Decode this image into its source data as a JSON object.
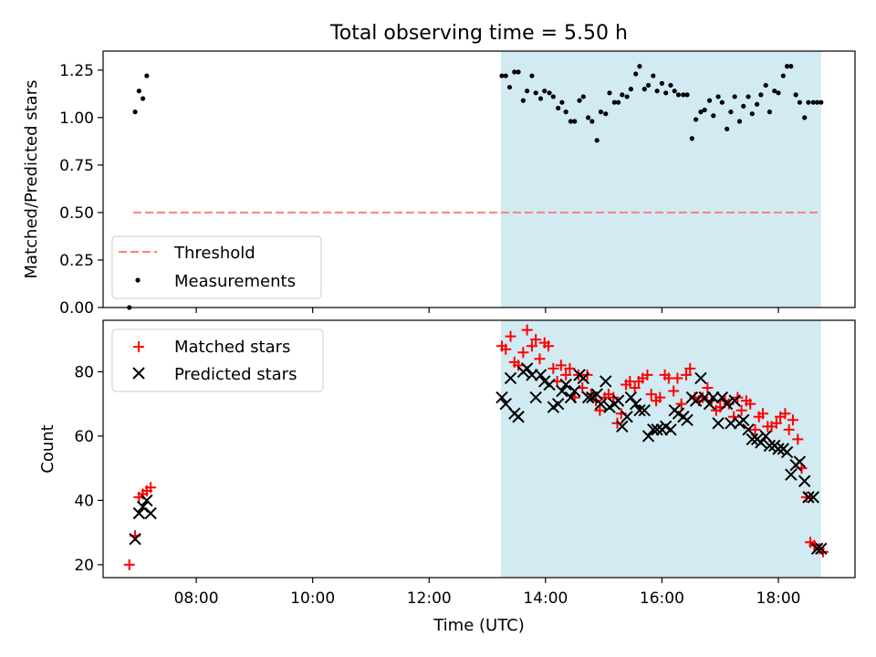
{
  "chart_data": [
    {
      "type": "scatter",
      "title": "Total observing time = 5.50 h",
      "xlabel": "",
      "ylabel": "Matched/Predicted stars",
      "xlim": [
        "06:24",
        "19:19"
      ],
      "ylim": [
        0,
        1.35
      ],
      "yticks": [
        "0.00",
        "0.25",
        "0.50",
        "0.75",
        "1.00",
        "1.25"
      ],
      "xticks": [
        "08:00",
        "10:00",
        "12:00",
        "14:00",
        "16:00",
        "18:00"
      ],
      "xtick_labels_shown": false,
      "shaded_span": {
        "from": "13:14",
        "to": "18:44",
        "color": "#add8e6"
      },
      "threshold": {
        "name": "Threshold",
        "value": 0.5,
        "from": "06:55",
        "to": "18:44",
        "color": "#ff7f7f",
        "style": "dashed"
      },
      "legend": {
        "position": "lower-left",
        "entries": [
          "Threshold",
          "Measurements"
        ]
      },
      "series": [
        {
          "name": "Measurements",
          "marker": "dot",
          "color": "#000000",
          "x": [
            "06:51",
            "06:57",
            "07:01",
            "07:05",
            "07:09",
            "13:15",
            "13:19",
            "13:23",
            "13:28",
            "13:32",
            "13:37",
            "13:41",
            "13:46",
            "13:50",
            "13:55",
            "13:59",
            "14:04",
            "14:08",
            "14:13",
            "14:17",
            "14:21",
            "14:26",
            "14:30",
            "14:35",
            "14:39",
            "14:44",
            "14:48",
            "14:53",
            "14:57",
            "15:02",
            "15:06",
            "15:11",
            "15:15",
            "15:19",
            "15:24",
            "15:28",
            "15:33",
            "15:37",
            "15:42",
            "15:46",
            "15:51",
            "15:55",
            "16:00",
            "16:04",
            "16:09",
            "16:13",
            "16:17",
            "16:22",
            "16:26",
            "16:31",
            "16:35",
            "16:40",
            "16:44",
            "16:49",
            "16:53",
            "16:58",
            "17:02",
            "17:07",
            "17:11",
            "17:15",
            "17:20",
            "17:24",
            "17:29",
            "17:33",
            "17:38",
            "17:42",
            "17:47",
            "17:51",
            "17:56",
            "18:00",
            "18:05",
            "18:09",
            "18:13",
            "18:18",
            "18:22",
            "18:27",
            "18:31",
            "18:36",
            "18:40",
            "18:44"
          ],
          "y": [
            0.0,
            1.03,
            1.14,
            1.1,
            1.22,
            1.22,
            1.22,
            1.16,
            1.24,
            1.24,
            1.09,
            1.14,
            1.22,
            1.13,
            1.1,
            1.14,
            1.13,
            1.11,
            1.05,
            1.08,
            1.03,
            0.98,
            0.98,
            1.09,
            1.11,
            1.0,
            0.98,
            0.88,
            1.03,
            1.02,
            1.13,
            1.08,
            1.08,
            1.12,
            1.11,
            1.15,
            1.23,
            1.27,
            1.15,
            1.17,
            1.22,
            1.14,
            1.18,
            1.13,
            1.17,
            1.14,
            1.12,
            1.12,
            1.12,
            0.89,
            0.99,
            1.03,
            1.04,
            1.09,
            1.01,
            1.11,
            1.08,
            0.94,
            1.03,
            1.11,
            0.98,
            1.06,
            1.11,
            1.02,
            1.07,
            1.12,
            1.17,
            1.03,
            1.14,
            1.13,
            1.22,
            1.27,
            1.27,
            1.12,
            1.08,
            1.0,
            1.08,
            1.08,
            1.08,
            1.08
          ]
        }
      ]
    },
    {
      "type": "scatter",
      "title": "",
      "xlabel": "Time (UTC)",
      "ylabel": "Count",
      "xlim": [
        "06:24",
        "19:19"
      ],
      "ylim": [
        16,
        96
      ],
      "yticks": [
        "20",
        "40",
        "60",
        "80"
      ],
      "xticks": [
        "08:00",
        "10:00",
        "12:00",
        "14:00",
        "16:00",
        "18:00"
      ],
      "shaded_span": {
        "from": "13:14",
        "to": "18:44",
        "color": "#add8e6"
      },
      "legend": {
        "position": "upper-left",
        "entries": [
          "Matched stars",
          "Predicted stars"
        ]
      },
      "series": [
        {
          "name": "Matched stars",
          "marker": "plus",
          "color": "#ff0000",
          "x": [
            "06:51",
            "06:57",
            "07:01",
            "07:05",
            "07:09",
            "07:13",
            "13:15",
            "13:19",
            "13:24",
            "13:28",
            "13:32",
            "13:37",
            "13:41",
            "13:46",
            "13:50",
            "13:54",
            "13:59",
            "14:03",
            "14:08",
            "14:12",
            "14:16",
            "14:21",
            "14:25",
            "14:30",
            "14:34",
            "14:38",
            "14:43",
            "14:47",
            "14:52",
            "14:56",
            "15:01",
            "15:05",
            "15:10",
            "15:14",
            "15:18",
            "15:23",
            "15:27",
            "15:32",
            "15:36",
            "15:40",
            "15:45",
            "15:49",
            "15:54",
            "15:58",
            "16:03",
            "16:07",
            "16:12",
            "16:16",
            "16:20",
            "16:25",
            "16:29",
            "16:34",
            "16:38",
            "16:42",
            "16:47",
            "16:51",
            "16:56",
            "17:00",
            "17:05",
            "17:09",
            "17:14",
            "17:18",
            "17:22",
            "17:27",
            "17:31",
            "17:36",
            "17:40",
            "17:44",
            "17:49",
            "17:53",
            "17:58",
            "18:02",
            "18:07",
            "18:11",
            "18:15",
            "18:20",
            "18:24",
            "18:29",
            "18:33",
            "18:37",
            "18:42",
            "18:46"
          ],
          "y": [
            20,
            29,
            41,
            42,
            43,
            44,
            88,
            87,
            91,
            83,
            82,
            86,
            93,
            88,
            90,
            84,
            89,
            88,
            81,
            77,
            82,
            79,
            81,
            72,
            79,
            75,
            79,
            73,
            71,
            68,
            72,
            73,
            72,
            64,
            67,
            76,
            77,
            75,
            77,
            78,
            79,
            73,
            71,
            72,
            79,
            78,
            74,
            78,
            70,
            79,
            81,
            72,
            71,
            72,
            75,
            71,
            68,
            69,
            71,
            70,
            66,
            72,
            68,
            71,
            70,
            62,
            66,
            67,
            63,
            63,
            64,
            66,
            67,
            62,
            65,
            59,
            50,
            41,
            27,
            26,
            25,
            24
          ]
        },
        {
          "name": "Predicted stars",
          "marker": "x",
          "color": "#000000",
          "x": [
            "06:57",
            "07:01",
            "07:05",
            "07:09",
            "07:13",
            "13:15",
            "13:19",
            "13:24",
            "13:28",
            "13:32",
            "13:37",
            "13:41",
            "13:46",
            "13:50",
            "13:55",
            "13:59",
            "14:04",
            "14:08",
            "14:13",
            "14:17",
            "14:21",
            "14:26",
            "14:30",
            "14:35",
            "14:39",
            "14:44",
            "14:48",
            "14:53",
            "14:57",
            "15:02",
            "15:06",
            "15:11",
            "15:15",
            "15:19",
            "15:24",
            "15:28",
            "15:33",
            "15:37",
            "15:42",
            "15:46",
            "15:51",
            "15:55",
            "16:00",
            "16:04",
            "16:09",
            "16:13",
            "16:17",
            "16:22",
            "16:26",
            "16:31",
            "16:35",
            "16:40",
            "16:44",
            "16:49",
            "16:53",
            "16:58",
            "17:02",
            "17:07",
            "17:11",
            "17:15",
            "17:20",
            "17:24",
            "17:29",
            "17:33",
            "17:38",
            "17:42",
            "17:47",
            "17:51",
            "17:56",
            "18:00",
            "18:05",
            "18:09",
            "18:13",
            "18:18",
            "18:22",
            "18:27",
            "18:31",
            "18:36",
            "18:40",
            "18:44"
          ],
          "y": [
            28,
            36,
            38,
            40,
            36,
            72,
            70,
            78,
            67,
            66,
            80,
            81,
            79,
            72,
            79,
            77,
            76,
            69,
            70,
            74,
            76,
            72,
            74,
            79,
            78,
            72,
            72,
            73,
            70,
            77,
            69,
            70,
            71,
            63,
            66,
            72,
            70,
            68,
            68,
            60,
            62,
            62,
            62,
            63,
            62,
            68,
            67,
            66,
            65,
            72,
            71,
            78,
            72,
            70,
            72,
            64,
            72,
            70,
            64,
            71,
            64,
            65,
            62,
            59,
            59,
            58,
            60,
            57,
            57,
            56,
            56,
            55,
            48,
            51,
            52,
            46,
            41,
            41,
            25,
            25
          ]
        }
      ]
    }
  ]
}
